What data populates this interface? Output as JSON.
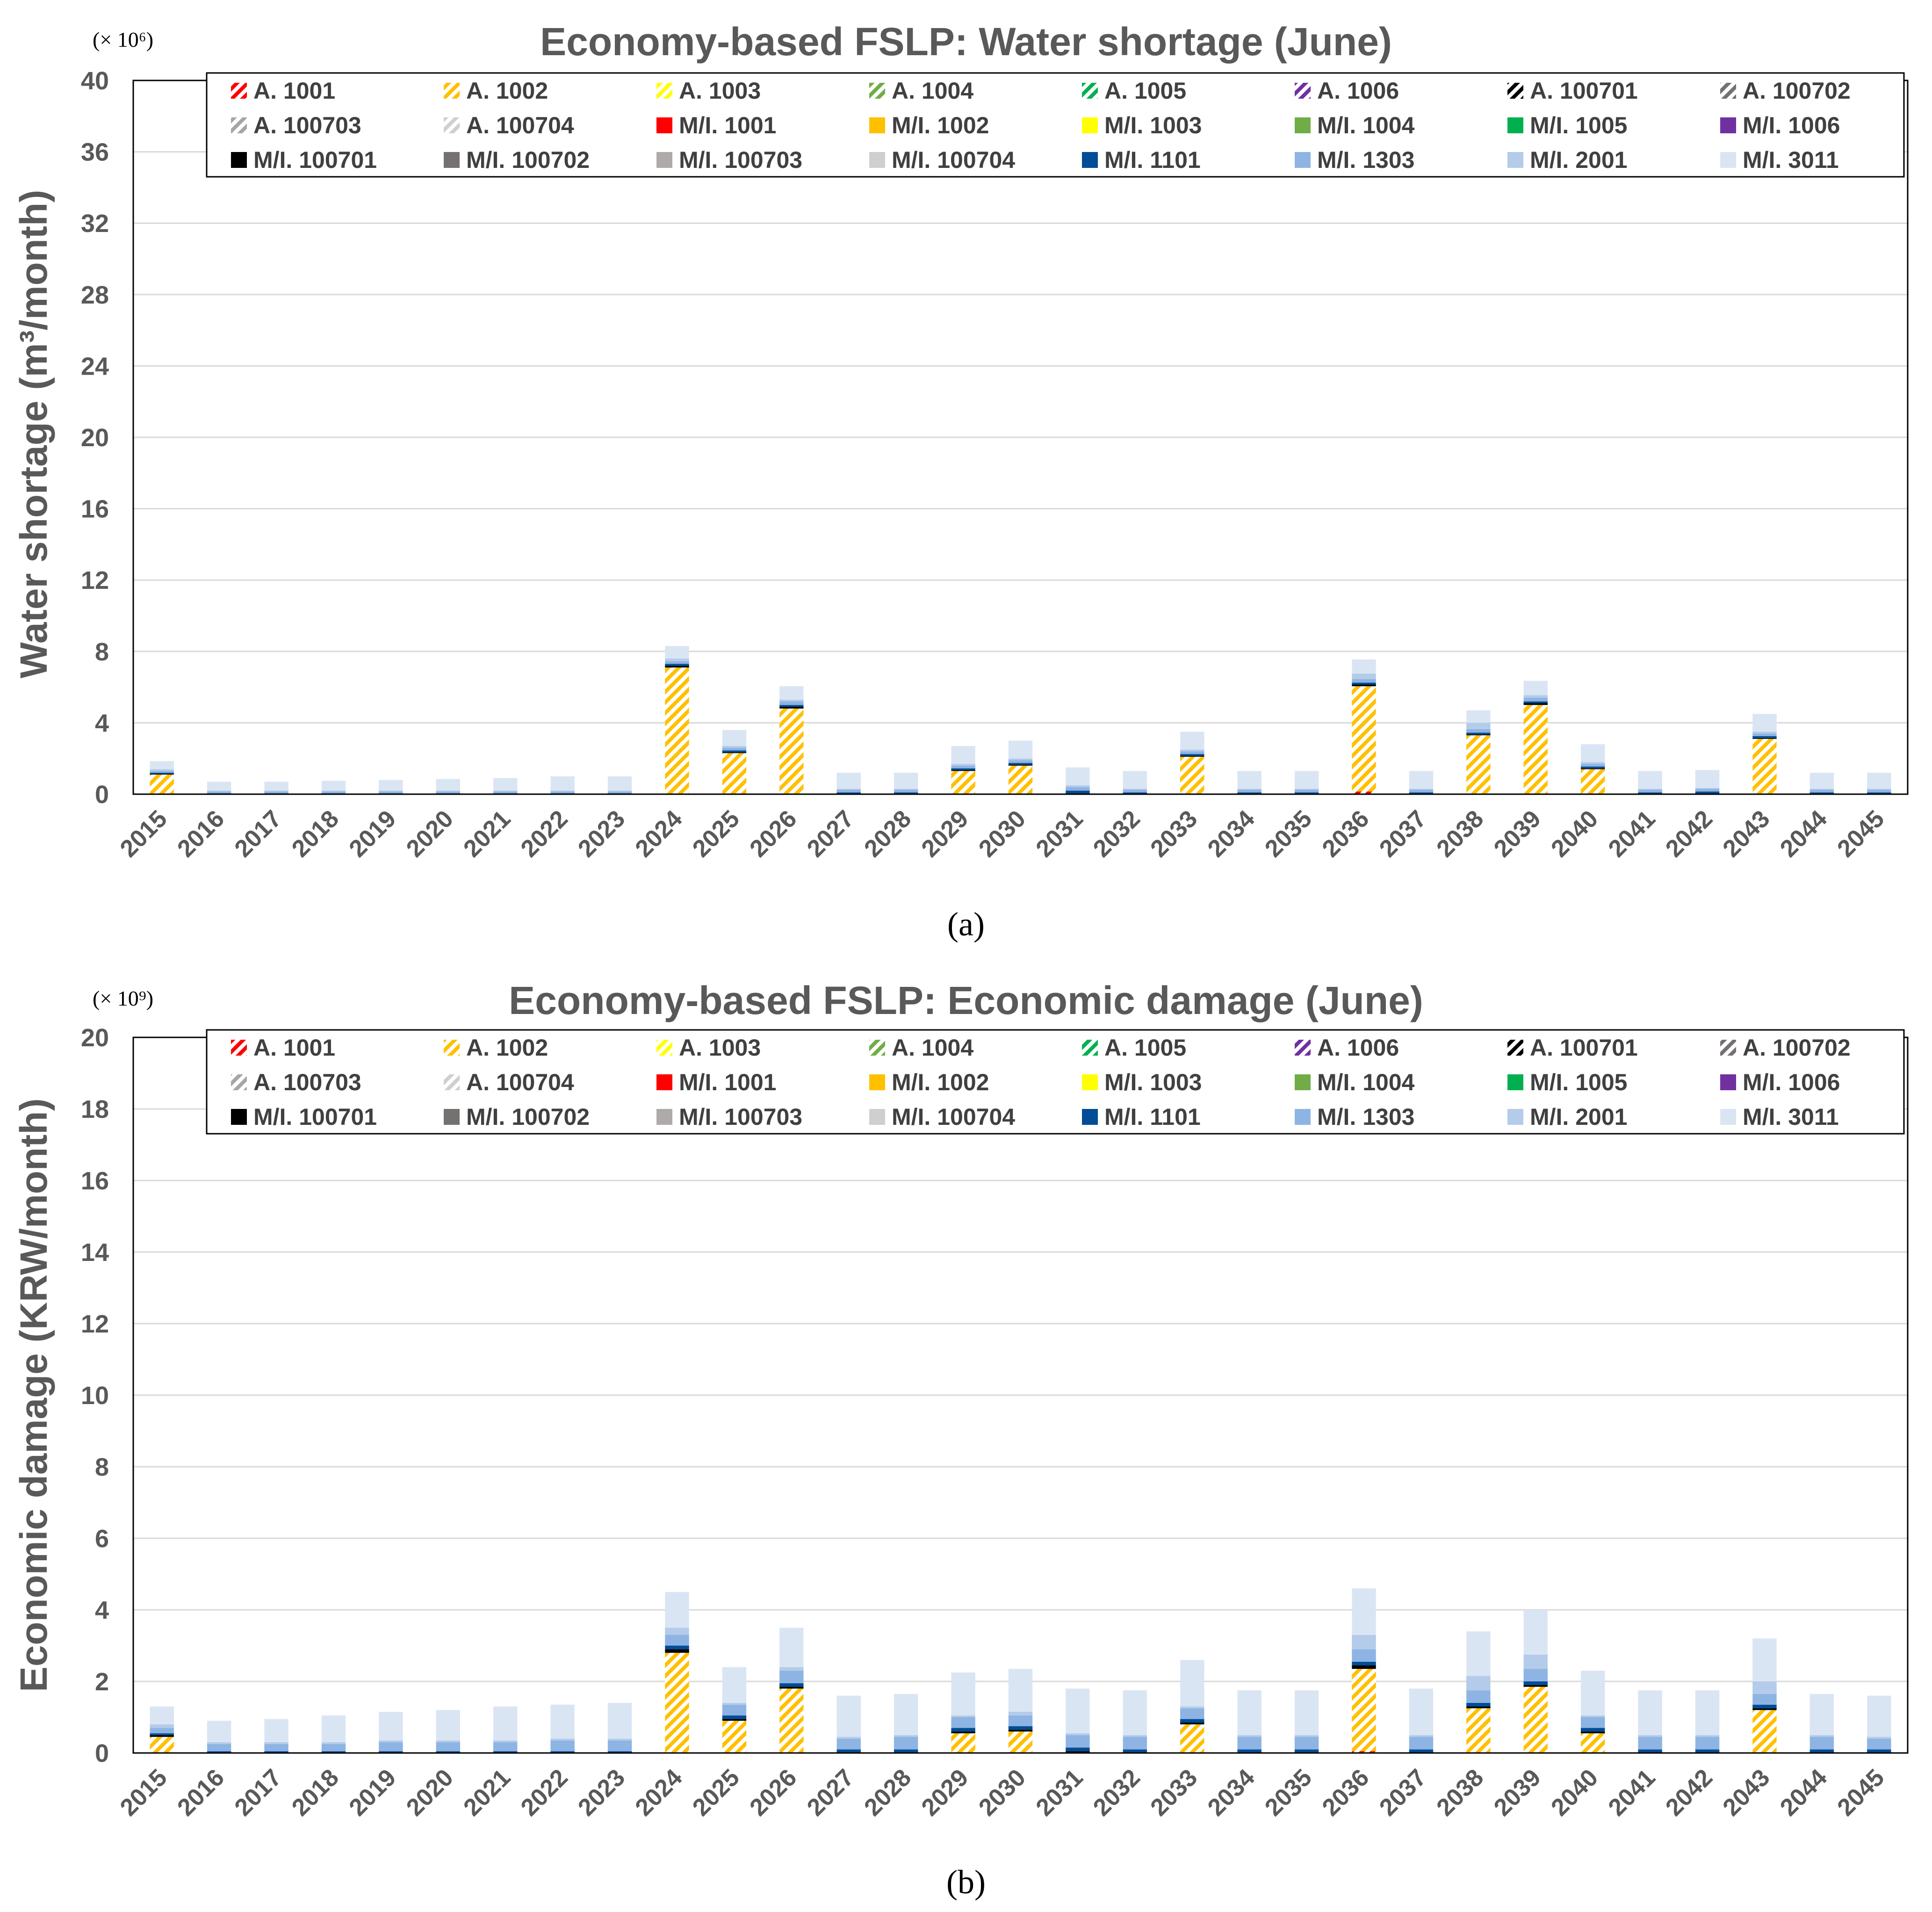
{
  "legend_items": [
    {
      "label": "A. 1001",
      "color": "#ff0000",
      "hatched": true
    },
    {
      "label": "A. 1002",
      "color": "#ffc000",
      "hatched": true
    },
    {
      "label": "A. 1003",
      "color": "#ffff00",
      "hatched": true
    },
    {
      "label": "A. 1004",
      "color": "#70ad47",
      "hatched": true
    },
    {
      "label": "A. 1005",
      "color": "#00b050",
      "hatched": true
    },
    {
      "label": "A. 1006",
      "color": "#7030a0",
      "hatched": true
    },
    {
      "label": "A. 100701",
      "color": "#000000",
      "hatched": true
    },
    {
      "label": "A. 100702",
      "color": "#767171",
      "hatched": true
    },
    {
      "label": "A. 100703",
      "color": "#a6a6a6",
      "hatched": true
    },
    {
      "label": "A. 100704",
      "color": "#d0cece",
      "hatched": true
    },
    {
      "label": "M/I. 1001",
      "color": "#ff0000",
      "hatched": false
    },
    {
      "label": "M/I. 1002",
      "color": "#ffc000",
      "hatched": false
    },
    {
      "label": "M/I. 1003",
      "color": "#ffff00",
      "hatched": false
    },
    {
      "label": "M/I. 1004",
      "color": "#70ad47",
      "hatched": false
    },
    {
      "label": "M/I. 1005",
      "color": "#00b050",
      "hatched": false
    },
    {
      "label": "M/I. 1006",
      "color": "#7030a0",
      "hatched": false
    },
    {
      "label": "M/I. 100701",
      "color": "#000000",
      "hatched": false
    },
    {
      "label": "M/I. 100702",
      "color": "#767171",
      "hatched": false
    },
    {
      "label": "M/I. 100703",
      "color": "#aeaaaa",
      "hatched": false
    },
    {
      "label": "M/I. 100704",
      "color": "#d0cece",
      "hatched": false
    },
    {
      "label": "M/I. 1101",
      "color": "#004c97",
      "hatched": false
    },
    {
      "label": "M/I. 1303",
      "color": "#8eb4e3",
      "hatched": false
    },
    {
      "label": "M/I. 2001",
      "color": "#b4cbe9",
      "hatched": false
    },
    {
      "label": "M/I. 3011",
      "color": "#dae5f4",
      "hatched": false
    }
  ],
  "chart_data": [
    {
      "type": "bar",
      "stacked": true,
      "title": "Economy-based FSLP: Water shortage (June)",
      "multiplier": "(× 10⁶)",
      "ylabel": "Water shortage (m³/month)",
      "xlabel": "",
      "ylim": [
        0,
        40
      ],
      "yticks": [
        "0",
        "4",
        "8",
        "12",
        "16",
        "20",
        "24",
        "28",
        "32",
        "36",
        "40"
      ],
      "grid": true,
      "legend_position": "top",
      "caption": "(a)",
      "categories": [
        "2015",
        "2016",
        "2017",
        "2018",
        "2019",
        "2020",
        "2021",
        "2022",
        "2023",
        "2024",
        "2025",
        "2026",
        "2027",
        "2028",
        "2029",
        "2030",
        "2031",
        "2032",
        "2033",
        "2034",
        "2035",
        "2036",
        "2037",
        "2038",
        "2039",
        "2040",
        "2041",
        "2042",
        "2043",
        "2044",
        "2045"
      ],
      "series": [
        {
          "name": "A. 1001",
          "values": [
            0,
            0,
            0,
            0,
            0,
            0,
            0,
            0,
            0,
            0,
            0,
            0,
            0,
            0,
            0,
            0,
            0,
            0,
            0,
            0,
            0,
            0.15,
            0,
            0,
            0,
            0,
            0,
            0,
            0,
            0,
            0
          ]
        },
        {
          "name": "A. 1002",
          "values": [
            1.1,
            0,
            0,
            0,
            0,
            0,
            0,
            0,
            0,
            7.1,
            2.3,
            4.8,
            0,
            0,
            1.3,
            1.6,
            0,
            0,
            2.1,
            0,
            0,
            5.9,
            0,
            3.3,
            5.0,
            1.4,
            0,
            0,
            3.1,
            0,
            0
          ]
        },
        {
          "name": "M/I. 100701",
          "values": [
            0.05,
            0,
            0,
            0,
            0,
            0,
            0,
            0,
            0,
            0.1,
            0.05,
            0.1,
            0,
            0,
            0.05,
            0.05,
            0.05,
            0,
            0.05,
            0,
            0,
            0.1,
            0,
            0.05,
            0.1,
            0.05,
            0,
            0,
            0.05,
            0,
            0
          ]
        },
        {
          "name": "M/I. 1101",
          "values": [
            0.05,
            0.05,
            0.05,
            0.05,
            0.05,
            0.05,
            0.05,
            0.05,
            0.05,
            0.1,
            0.1,
            0.1,
            0.1,
            0.1,
            0.1,
            0.1,
            0.15,
            0.1,
            0.1,
            0.1,
            0.1,
            0.1,
            0.1,
            0.1,
            0.1,
            0.1,
            0.1,
            0.15,
            0.1,
            0.1,
            0.1
          ]
        },
        {
          "name": "M/I. 1303",
          "values": [
            0.1,
            0.1,
            0.1,
            0.1,
            0.1,
            0.1,
            0.1,
            0.1,
            0.1,
            0.15,
            0.15,
            0.2,
            0.15,
            0.15,
            0.15,
            0.15,
            0.2,
            0.15,
            0.15,
            0.15,
            0.15,
            0.2,
            0.15,
            0.2,
            0.2,
            0.15,
            0.15,
            0.15,
            0.15,
            0.15,
            0.15
          ]
        },
        {
          "name": "M/I. 2001",
          "values": [
            0.1,
            0.05,
            0.05,
            0.05,
            0.05,
            0.05,
            0.05,
            0.05,
            0.05,
            0.15,
            0.1,
            0.1,
            0.05,
            0.05,
            0.1,
            0.1,
            0.1,
            0.05,
            0.1,
            0.05,
            0.05,
            0.3,
            0.05,
            0.35,
            0.15,
            0.1,
            0.05,
            0.05,
            0.1,
            0.05,
            0.05
          ]
        },
        {
          "name": "M/I. 3011",
          "values": [
            0.45,
            0.5,
            0.5,
            0.55,
            0.6,
            0.65,
            0.7,
            0.8,
            0.8,
            0.7,
            0.9,
            0.75,
            0.9,
            0.9,
            1.0,
            1.0,
            1.0,
            1.0,
            1.0,
            1.0,
            1.0,
            0.8,
            1.0,
            0.7,
            0.8,
            1.0,
            1.0,
            1.0,
            1.0,
            0.9,
            0.9
          ]
        }
      ]
    },
    {
      "type": "bar",
      "stacked": true,
      "title": "Economy-based FSLP: Economic damage (June)",
      "multiplier": "(× 10⁹)",
      "ylabel": "Economic damage (KRW/month)",
      "xlabel": "",
      "ylim": [
        0,
        20
      ],
      "yticks": [
        "0",
        "2",
        "4",
        "6",
        "8",
        "10",
        "12",
        "14",
        "16",
        "18",
        "20"
      ],
      "grid": true,
      "legend_position": "top",
      "caption": "(b)",
      "categories": [
        "2015",
        "2016",
        "2017",
        "2018",
        "2019",
        "2020",
        "2021",
        "2022",
        "2023",
        "2024",
        "2025",
        "2026",
        "2027",
        "2028",
        "2029",
        "2030",
        "2031",
        "2032",
        "2033",
        "2034",
        "2035",
        "2036",
        "2037",
        "2038",
        "2039",
        "2040",
        "2041",
        "2042",
        "2043",
        "2044",
        "2045"
      ],
      "series": [
        {
          "name": "A. 1001",
          "values": [
            0,
            0,
            0,
            0,
            0,
            0,
            0,
            0,
            0,
            0,
            0,
            0,
            0,
            0,
            0,
            0,
            0,
            0,
            0,
            0,
            0,
            0.05,
            0,
            0,
            0,
            0,
            0,
            0,
            0,
            0,
            0
          ]
        },
        {
          "name": "A. 1002",
          "values": [
            0.45,
            0,
            0,
            0,
            0,
            0,
            0,
            0,
            0,
            2.8,
            0.9,
            1.8,
            0,
            0,
            0.55,
            0.6,
            0,
            0,
            0.8,
            0,
            0,
            2.3,
            0,
            1.25,
            1.85,
            0.55,
            0,
            0,
            1.2,
            0,
            0
          ]
        },
        {
          "name": "M/I. 100701",
          "values": [
            0.05,
            0,
            0,
            0,
            0,
            0,
            0,
            0,
            0,
            0.1,
            0.05,
            0.05,
            0,
            0,
            0.05,
            0.05,
            0.05,
            0,
            0.05,
            0,
            0,
            0.1,
            0,
            0.05,
            0.05,
            0.05,
            0,
            0,
            0.05,
            0,
            0
          ]
        },
        {
          "name": "M/I. 1101",
          "values": [
            0.05,
            0.05,
            0.05,
            0.05,
            0.05,
            0.05,
            0.05,
            0.05,
            0.05,
            0.1,
            0.1,
            0.1,
            0.1,
            0.1,
            0.1,
            0.1,
            0.1,
            0.1,
            0.1,
            0.1,
            0.1,
            0.1,
            0.1,
            0.1,
            0.1,
            0.1,
            0.1,
            0.1,
            0.1,
            0.1,
            0.1
          ]
        },
        {
          "name": "M/I. 1303",
          "values": [
            0.15,
            0.2,
            0.2,
            0.2,
            0.25,
            0.25,
            0.25,
            0.3,
            0.3,
            0.3,
            0.3,
            0.35,
            0.3,
            0.35,
            0.3,
            0.3,
            0.35,
            0.35,
            0.3,
            0.35,
            0.35,
            0.35,
            0.35,
            0.35,
            0.35,
            0.3,
            0.35,
            0.35,
            0.3,
            0.35,
            0.3
          ]
        },
        {
          "name": "M/I. 2001",
          "values": [
            0.1,
            0.05,
            0.05,
            0.05,
            0.05,
            0.05,
            0.05,
            0.05,
            0.05,
            0.2,
            0.05,
            0.1,
            0.05,
            0.05,
            0.05,
            0.1,
            0.05,
            0.05,
            0.05,
            0.05,
            0.05,
            0.4,
            0.05,
            0.4,
            0.4,
            0.05,
            0.05,
            0.05,
            0.35,
            0.05,
            0.05
          ]
        },
        {
          "name": "M/I. 3011",
          "values": [
            0.5,
            0.6,
            0.65,
            0.75,
            0.8,
            0.85,
            0.95,
            0.95,
            1.0,
            1.0,
            1.0,
            1.1,
            1.15,
            1.15,
            1.2,
            1.2,
            1.25,
            1.25,
            1.3,
            1.25,
            1.25,
            1.3,
            1.3,
            1.25,
            1.25,
            1.25,
            1.25,
            1.25,
            1.2,
            1.15,
            1.15
          ]
        }
      ]
    }
  ]
}
